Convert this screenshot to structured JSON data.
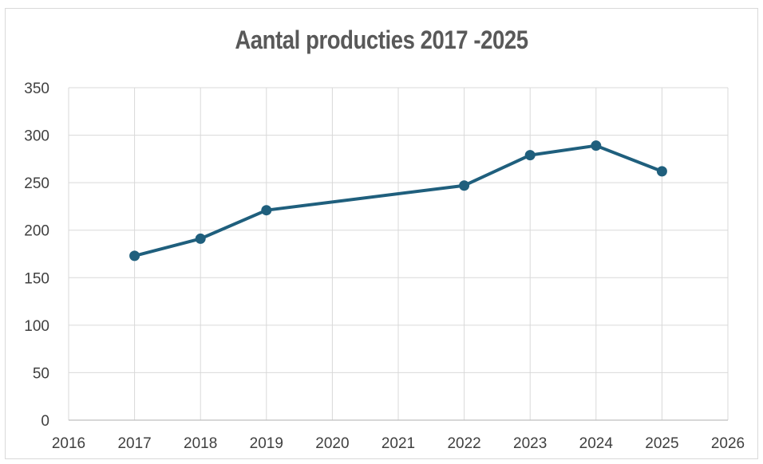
{
  "chart_data": {
    "type": "scatter",
    "mode": "lines+markers",
    "title": "Aantal producties 2017 -2025",
    "xlabel": "",
    "ylabel": "",
    "xlim": [
      2016,
      2026
    ],
    "ylim": [
      0,
      350
    ],
    "x_ticks": [
      "2016",
      "2017",
      "2018",
      "2019",
      "2020",
      "2021",
      "2022",
      "2023",
      "2024",
      "2025",
      "2026"
    ],
    "y_ticks": [
      "0",
      "50",
      "100",
      "150",
      "200",
      "250",
      "300",
      "350"
    ],
    "grid": true,
    "legend": "none",
    "series": [
      {
        "x": [
          2017,
          2018,
          2019,
          2022,
          2023,
          2024,
          2025
        ],
        "y": [
          173,
          191,
          221,
          247,
          279,
          289,
          262
        ],
        "color": "#1f5f7d"
      }
    ]
  }
}
